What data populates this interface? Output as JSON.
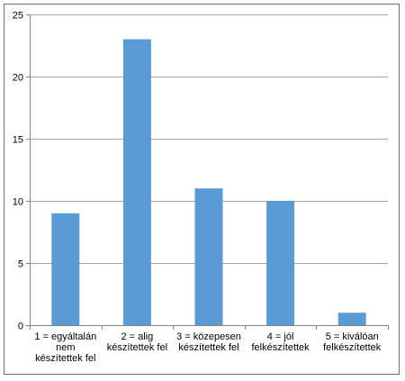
{
  "chart_data": {
    "type": "bar",
    "categories": [
      [
        "1 = egyáltalán",
        "nem",
        "készítettek fel"
      ],
      [
        "2 = alig",
        "készítettek fel"
      ],
      [
        "3 = közepesen",
        "készítettek fel"
      ],
      [
        "4 = jól",
        "felkészítettek"
      ],
      [
        "5 = kiválóan",
        "felkészítettek"
      ]
    ],
    "values": [
      9,
      23,
      11,
      10,
      1
    ],
    "ylim": [
      0,
      25
    ],
    "yticks": [
      0,
      5,
      10,
      15,
      20,
      25
    ],
    "grid": true,
    "bar_color": "#5b9bd5",
    "grid_color": "#a6a6a6",
    "title": "",
    "xlabel": "",
    "ylabel": ""
  }
}
